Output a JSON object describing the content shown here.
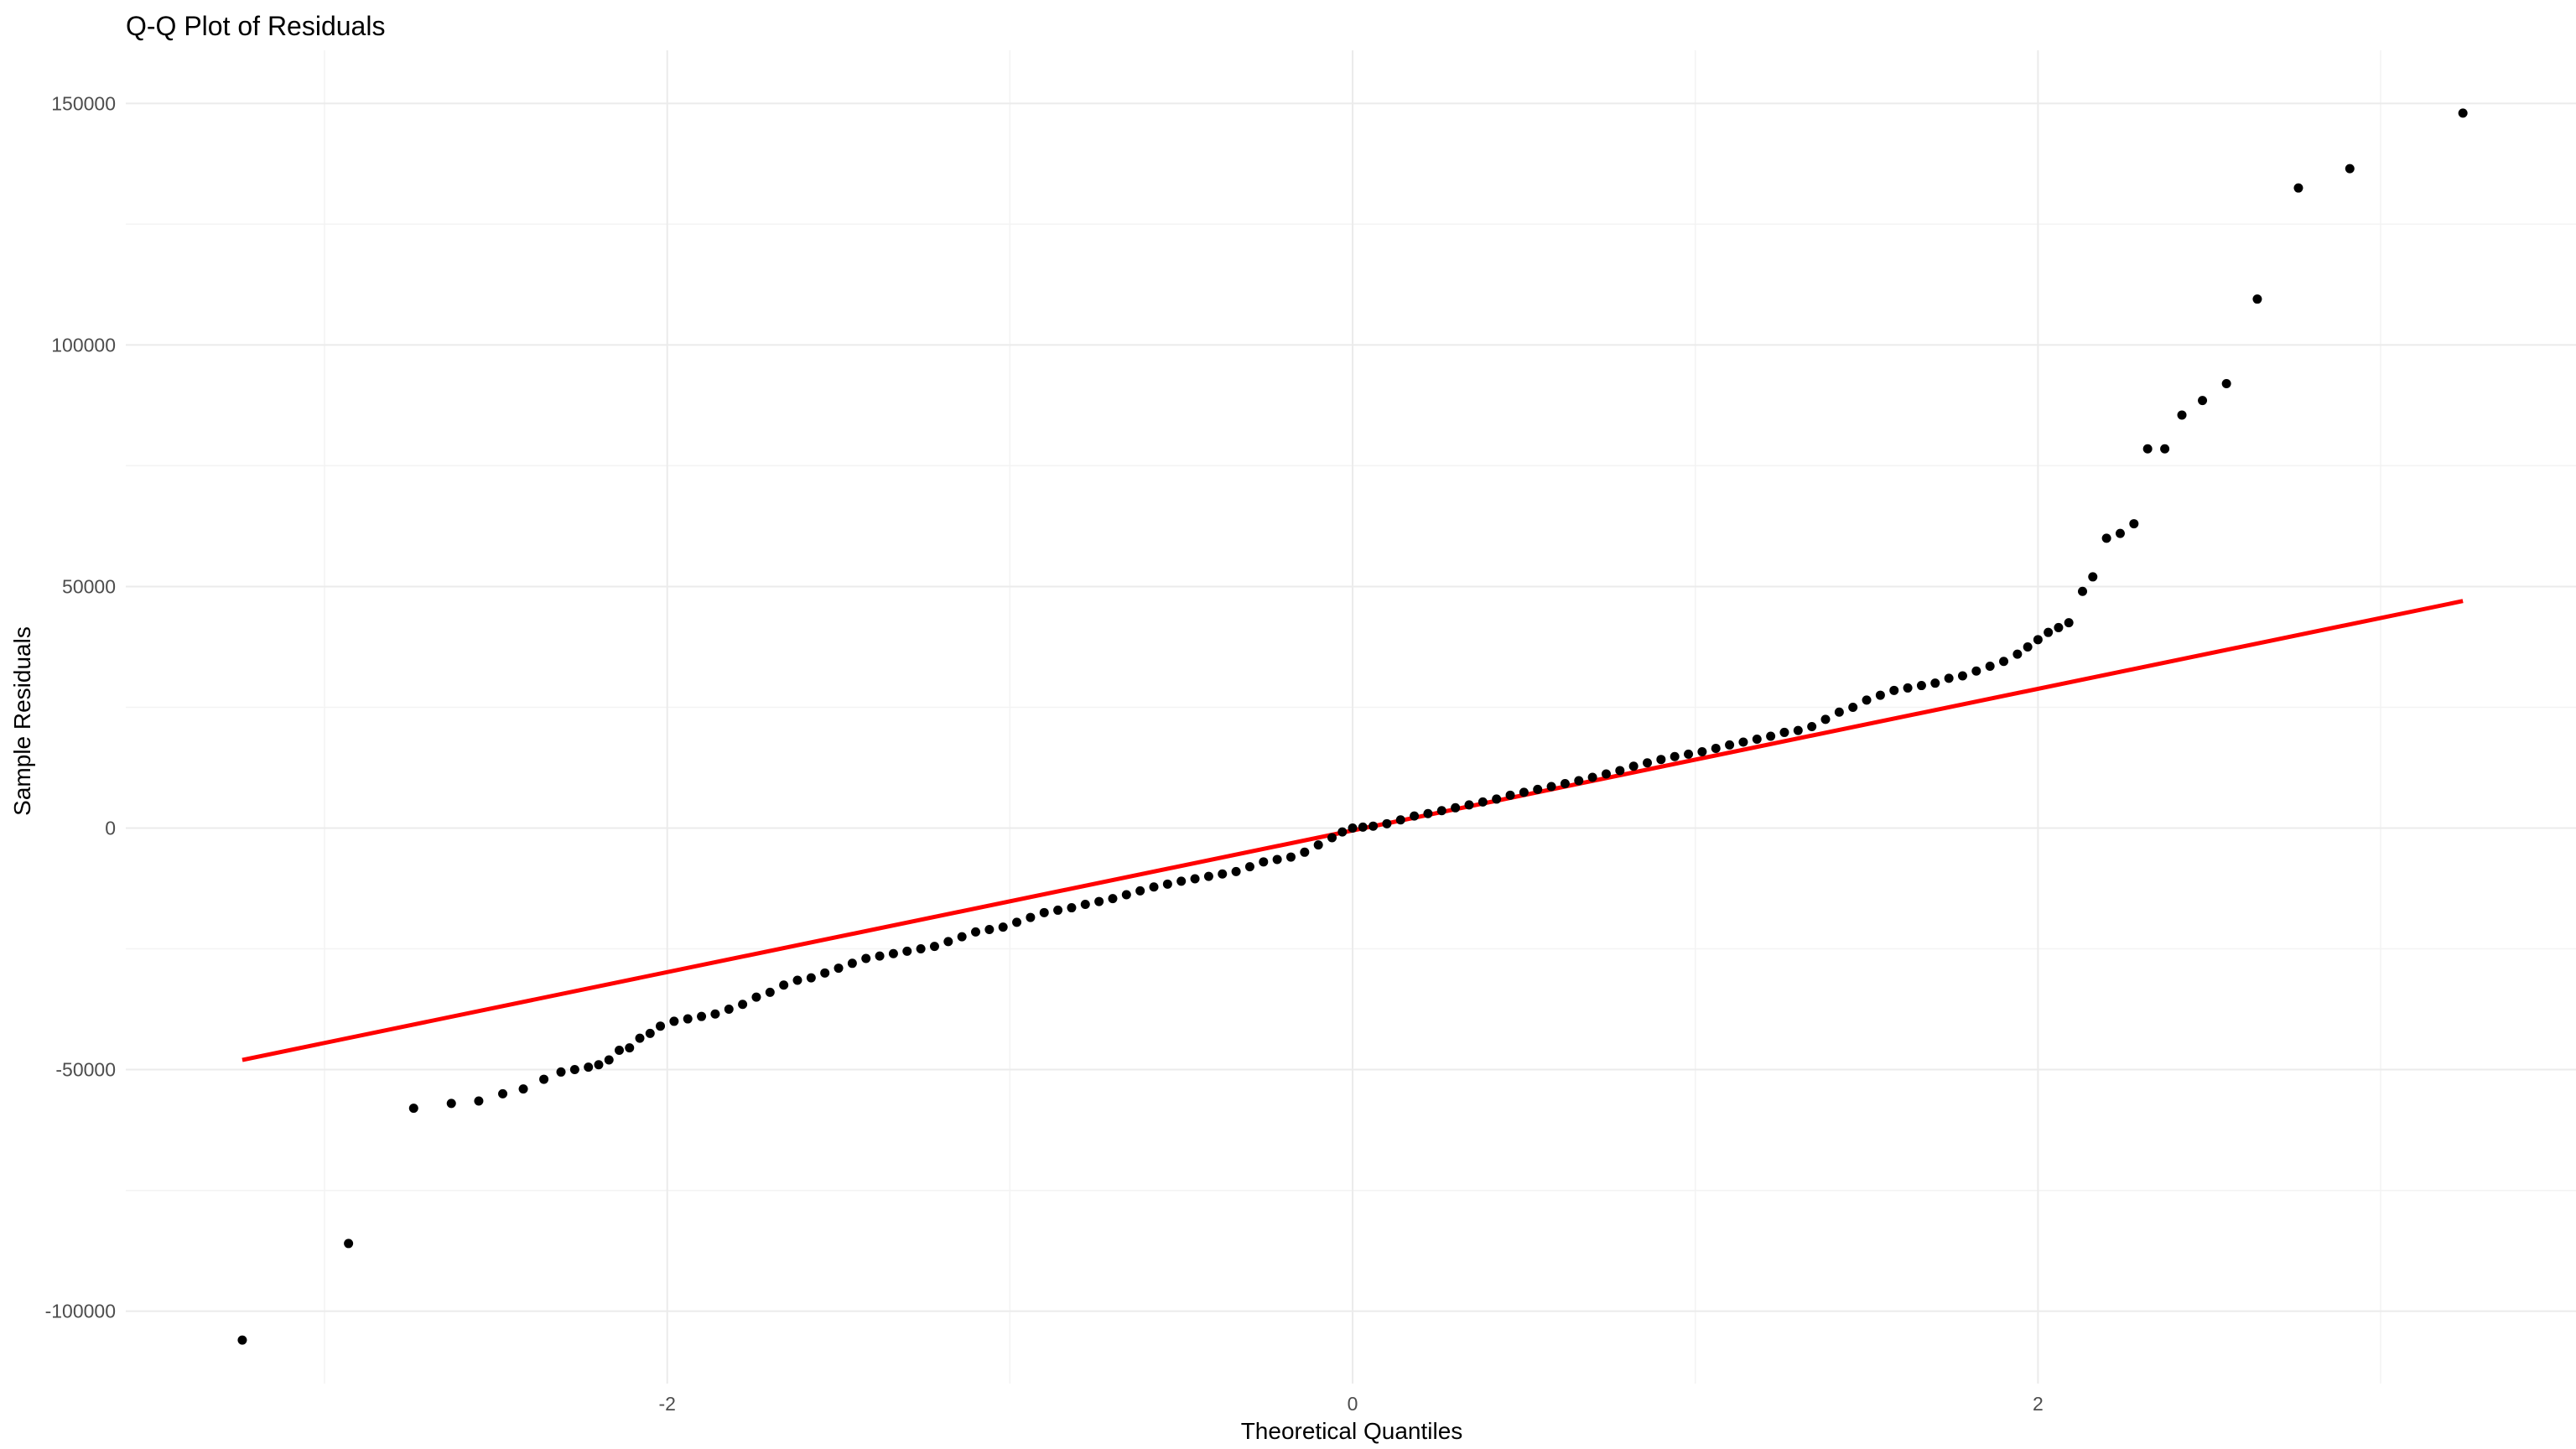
{
  "chart_data": {
    "type": "scatter",
    "title": "Q-Q Plot of Residuals",
    "xlabel": "Theoretical Quantiles",
    "ylabel": "Sample Residuals",
    "xlim": [
      -3.58,
      3.57
    ],
    "ylim": [
      -115000,
      161000
    ],
    "x_ticks": [
      {
        "value": -2,
        "label": "-2"
      },
      {
        "value": 0,
        "label": "0"
      },
      {
        "value": 2,
        "label": "2"
      }
    ],
    "y_ticks": [
      {
        "value": -100000,
        "label": "-100000"
      },
      {
        "value": -50000,
        "label": "-50000"
      },
      {
        "value": 0,
        "label": "0"
      },
      {
        "value": 50000,
        "label": "50000"
      },
      {
        "value": 100000,
        "label": "100000"
      },
      {
        "value": 150000,
        "label": "150000"
      }
    ],
    "grid": true,
    "legend": "none",
    "reference_line": {
      "color": "#ff0000",
      "points": [
        [
          -3.24,
          -48000
        ],
        [
          3.24,
          47000
        ]
      ]
    },
    "point_color": "#000000",
    "series": [
      {
        "points": [
          [
            -3.24,
            -106000
          ],
          [
            -2.93,
            -86000
          ],
          [
            -2.74,
            -58000
          ],
          [
            -2.63,
            -57000
          ],
          [
            -2.55,
            -56500
          ],
          [
            -2.48,
            -55000
          ],
          [
            -2.42,
            -54000
          ],
          [
            -2.36,
            -52000
          ],
          [
            -2.31,
            -50500
          ],
          [
            -2.27,
            -50000
          ],
          [
            -2.23,
            -49500
          ],
          [
            -2.2,
            -49000
          ],
          [
            -2.17,
            -48000
          ],
          [
            -2.14,
            -46000
          ],
          [
            -2.11,
            -45500
          ],
          [
            -2.08,
            -43500
          ],
          [
            -2.05,
            -42500
          ],
          [
            -2.02,
            -41000
          ],
          [
            -1.98,
            -40000
          ],
          [
            -1.94,
            -39500
          ],
          [
            -1.9,
            -39000
          ],
          [
            -1.86,
            -38500
          ],
          [
            -1.82,
            -37500
          ],
          [
            -1.78,
            -36500
          ],
          [
            -1.74,
            -35000
          ],
          [
            -1.7,
            -34000
          ],
          [
            -1.66,
            -32500
          ],
          [
            -1.62,
            -31500
          ],
          [
            -1.58,
            -31000
          ],
          [
            -1.54,
            -30000
          ],
          [
            -1.5,
            -29000
          ],
          [
            -1.46,
            -28000
          ],
          [
            -1.42,
            -27000
          ],
          [
            -1.38,
            -26500
          ],
          [
            -1.34,
            -26000
          ],
          [
            -1.3,
            -25500
          ],
          [
            -1.26,
            -25000
          ],
          [
            -1.22,
            -24500
          ],
          [
            -1.18,
            -23500
          ],
          [
            -1.14,
            -22500
          ],
          [
            -1.1,
            -21500
          ],
          [
            -1.06,
            -21000
          ],
          [
            -1.02,
            -20500
          ],
          [
            -0.98,
            -19500
          ],
          [
            -0.94,
            -18500
          ],
          [
            -0.9,
            -17500
          ],
          [
            -0.86,
            -17000
          ],
          [
            -0.82,
            -16500
          ],
          [
            -0.78,
            -15800
          ],
          [
            -0.74,
            -15200
          ],
          [
            -0.7,
            -14600
          ],
          [
            -0.66,
            -13800
          ],
          [
            -0.62,
            -13000
          ],
          [
            -0.58,
            -12200
          ],
          [
            -0.54,
            -11600
          ],
          [
            -0.5,
            -11000
          ],
          [
            -0.46,
            -10500
          ],
          [
            -0.42,
            -10000
          ],
          [
            -0.38,
            -9500
          ],
          [
            -0.34,
            -9000
          ],
          [
            -0.3,
            -8000
          ],
          [
            -0.26,
            -7000
          ],
          [
            -0.22,
            -6500
          ],
          [
            -0.18,
            -6000
          ],
          [
            -0.14,
            -5000
          ],
          [
            -0.1,
            -3500
          ],
          [
            -0.06,
            -2000
          ],
          [
            -0.03,
            -800
          ],
          [
            0.0,
            0
          ],
          [
            0.03,
            200
          ],
          [
            0.06,
            400
          ],
          [
            0.1,
            900
          ],
          [
            0.14,
            1700
          ],
          [
            0.18,
            2500
          ],
          [
            0.22,
            3000
          ],
          [
            0.26,
            3600
          ],
          [
            0.3,
            4200
          ],
          [
            0.34,
            4800
          ],
          [
            0.38,
            5400
          ],
          [
            0.42,
            6000
          ],
          [
            0.46,
            6800
          ],
          [
            0.5,
            7400
          ],
          [
            0.54,
            8000
          ],
          [
            0.58,
            8600
          ],
          [
            0.62,
            9200
          ],
          [
            0.66,
            9800
          ],
          [
            0.7,
            10500
          ],
          [
            0.74,
            11200
          ],
          [
            0.78,
            11900
          ],
          [
            0.82,
            12800
          ],
          [
            0.86,
            13500
          ],
          [
            0.9,
            14200
          ],
          [
            0.94,
            14800
          ],
          [
            0.98,
            15300
          ],
          [
            1.02,
            15800
          ],
          [
            1.06,
            16500
          ],
          [
            1.1,
            17200
          ],
          [
            1.14,
            17800
          ],
          [
            1.18,
            18400
          ],
          [
            1.22,
            19000
          ],
          [
            1.26,
            19800
          ],
          [
            1.3,
            20200
          ],
          [
            1.34,
            21000
          ],
          [
            1.38,
            22500
          ],
          [
            1.42,
            24000
          ],
          [
            1.46,
            25000
          ],
          [
            1.5,
            26500
          ],
          [
            1.54,
            27500
          ],
          [
            1.58,
            28500
          ],
          [
            1.62,
            29000
          ],
          [
            1.66,
            29500
          ],
          [
            1.7,
            30000
          ],
          [
            1.74,
            31000
          ],
          [
            1.78,
            31500
          ],
          [
            1.82,
            32500
          ],
          [
            1.86,
            33500
          ],
          [
            1.9,
            34500
          ],
          [
            1.94,
            36000
          ],
          [
            1.97,
            37500
          ],
          [
            2.0,
            39000
          ],
          [
            2.03,
            40500
          ],
          [
            2.06,
            41500
          ],
          [
            2.09,
            42500
          ],
          [
            2.13,
            49000
          ],
          [
            2.16,
            52000
          ],
          [
            2.2,
            60000
          ],
          [
            2.24,
            61000
          ],
          [
            2.28,
            63000
          ],
          [
            2.32,
            78500
          ],
          [
            2.37,
            78500
          ],
          [
            2.42,
            85500
          ],
          [
            2.48,
            88500
          ],
          [
            2.55,
            92000
          ],
          [
            2.64,
            109500
          ],
          [
            2.76,
            132500
          ],
          [
            2.91,
            136500
          ],
          [
            3.24,
            148000
          ]
        ]
      }
    ]
  }
}
